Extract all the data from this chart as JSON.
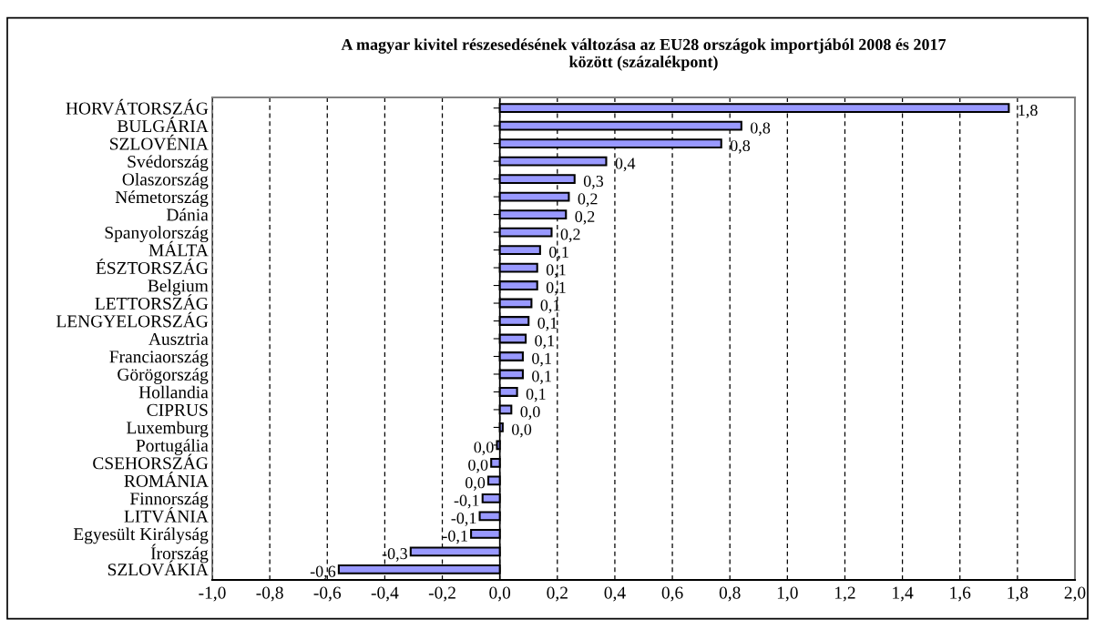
{
  "chart_data": {
    "type": "bar",
    "orientation": "horizontal",
    "title": "A magyar kivitel részesedésének változása az EU28 országok importjából 2008 és 2017\nközött (százalékpont)",
    "categories": [
      "HORVÁTORSZÁG",
      "BULGÁRIA",
      "SZLOVÉNIA",
      "Svédország",
      "Olaszország",
      "Németország",
      "Dánia",
      "Spanyolország",
      "MÁLTA",
      "ÉSZTORSZÁG",
      "Belgium",
      "LETTORSZÁG",
      "LENGYELORSZÁG",
      "Ausztria",
      "Franciaország",
      "Görögország",
      "Hollandia",
      "CIPRUS",
      "Luxemburg",
      "Portugália",
      "CSEHORSZÁG",
      "ROMÁNIA",
      "Finnország",
      "LITVÁNIA",
      "Egyesült Királyság",
      "Írország",
      "SZLOVÁKIA"
    ],
    "values": [
      1.77,
      0.84,
      0.77,
      0.37,
      0.26,
      0.24,
      0.23,
      0.18,
      0.14,
      0.13,
      0.13,
      0.11,
      0.1,
      0.09,
      0.08,
      0.08,
      0.06,
      0.04,
      0.01,
      -0.01,
      -0.03,
      -0.04,
      -0.06,
      -0.07,
      -0.1,
      -0.31,
      -0.56
    ],
    "value_labels": [
      "1,8",
      "0,8",
      "0,8",
      "0,4",
      "0,3",
      "0,2",
      "0,2",
      "0,2",
      "0,1",
      "0,1",
      "0,1",
      "0,1",
      "0,1",
      "0,1",
      "0,1",
      "0,1",
      "0,1",
      "0,0",
      "0,0",
      "0,0",
      "0,0",
      "0,0",
      "-0,1",
      "-0,1",
      "-0,1",
      "-0,3",
      "-0,6"
    ],
    "color": "#9999ff",
    "xlim": [
      -1.0,
      2.0
    ],
    "xticks": [
      {
        "value": -1.0,
        "label": "-1,0"
      },
      {
        "value": -0.8,
        "label": "-0,8"
      },
      {
        "value": -0.6,
        "label": "-0,6"
      },
      {
        "value": -0.4,
        "label": "-0,4"
      },
      {
        "value": -0.2,
        "label": "-0,2"
      },
      {
        "value": 0.0,
        "label": "0,0"
      },
      {
        "value": 0.2,
        "label": "0,2"
      },
      {
        "value": 0.4,
        "label": "0,4"
      },
      {
        "value": 0.6,
        "label": "0,6"
      },
      {
        "value": 0.8,
        "label": "0,8"
      },
      {
        "value": 1.0,
        "label": "1,0"
      },
      {
        "value": 1.2,
        "label": "1,2"
      },
      {
        "value": 1.4,
        "label": "1,4"
      },
      {
        "value": 1.6,
        "label": "1,6"
      },
      {
        "value": 1.8,
        "label": "1,8"
      },
      {
        "value": 2.0,
        "label": "2,0"
      }
    ],
    "grid": "x",
    "line_style": "dashed",
    "legend": false
  }
}
